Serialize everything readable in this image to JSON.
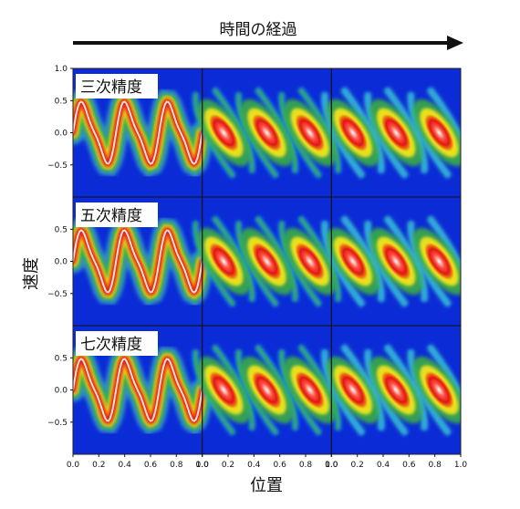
{
  "chart_data": {
    "type": "heatmap",
    "title": "時間の経過",
    "xlabel": "位置",
    "ylabel": "速度",
    "xlim": [
      0.0,
      1.0
    ],
    "ylim": [
      -1.0,
      1.0
    ],
    "x_ticks": [
      "0.0",
      "0.2",
      "0.4",
      "0.6",
      "0.8",
      "1.0"
    ],
    "y_ticks_top": [
      "1.0",
      "0.5",
      "0.0",
      "−0.5"
    ],
    "y_ticks": [
      "0.5",
      "0.0",
      "−0.5"
    ],
    "rows": [
      {
        "label": "三次精度",
        "time_steps": 3
      },
      {
        "label": "五次精度",
        "time_steps": 3
      },
      {
        "label": "七次精度",
        "time_steps": 3
      }
    ],
    "colormap": [
      "#0a2bd6",
      "#1fa6e8",
      "#4fd9c8",
      "#3cb43c",
      "#e8e01a",
      "#f07a12",
      "#e01616",
      "#ffffff"
    ],
    "background_color": "#0a2bd6"
  }
}
